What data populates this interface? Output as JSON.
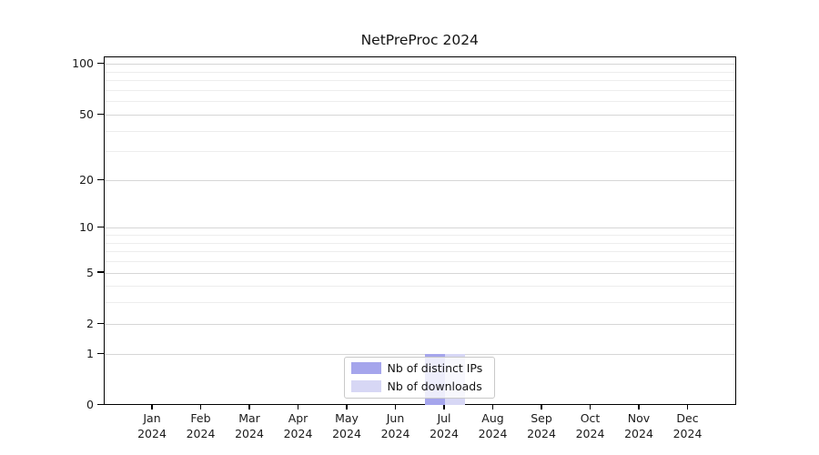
{
  "figure": {
    "title": "NetPreProc 2024"
  },
  "chart_data": {
    "type": "bar",
    "title": "NetPreProc 2024",
    "categories": [
      "Jan 2024",
      "Feb 2024",
      "Mar 2024",
      "Apr 2024",
      "May 2024",
      "Jun 2024",
      "Jul 2024",
      "Aug 2024",
      "Sep 2024",
      "Oct 2024",
      "Nov 2024",
      "Dec 2024"
    ],
    "series": [
      {
        "name": "Nb of distinct IPs",
        "color": "#a5a5ec",
        "values": [
          0,
          0,
          0,
          0,
          0,
          0,
          1,
          0,
          0,
          0,
          0,
          0
        ]
      },
      {
        "name": "Nb of downloads",
        "color": "#d7d7f5",
        "values": [
          0,
          0,
          0,
          0,
          0,
          0,
          1,
          0,
          0,
          0,
          0,
          0
        ]
      }
    ],
    "xlabel": "",
    "ylabel": "",
    "y_axis": {
      "scale": "log1p",
      "major_ticks": [
        0,
        1,
        2,
        5,
        10,
        20,
        50,
        100
      ],
      "minor_ticks": [
        3,
        4,
        6,
        7,
        8,
        9,
        30,
        40,
        60,
        70,
        80,
        90
      ],
      "range": [
        0,
        111
      ]
    },
    "grid": "horizontal-major-and-minor",
    "legend": {
      "position": "bottom-center",
      "entries": [
        "Nb of distinct IPs",
        "Nb of downloads"
      ]
    },
    "colors": {
      "major_grid": "#d6d6d6",
      "minor_grid": "#ededed",
      "axis": "#000000",
      "text": "#141414"
    }
  }
}
